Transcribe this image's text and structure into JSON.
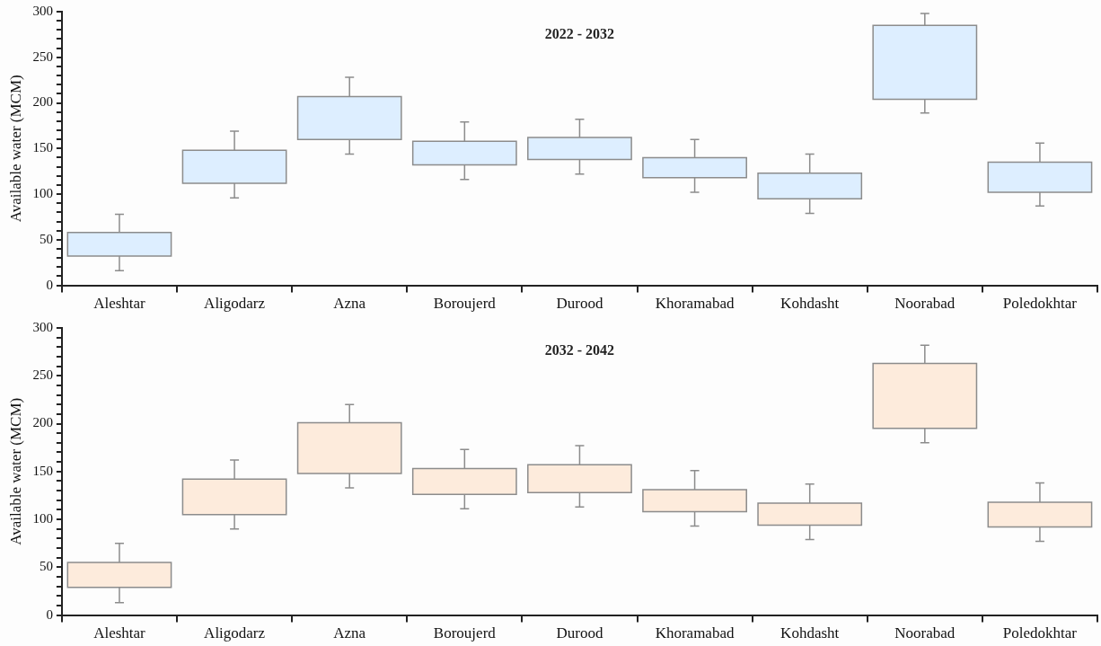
{
  "chart_data": [
    {
      "type": "box",
      "title": "2022 - 2032",
      "ylabel": "Available water (MCM)",
      "categories": [
        "Aleshtar",
        "Aligodarz",
        "Azna",
        "Boroujerd",
        "Durood",
        "Khoramabad",
        "Kohdasht",
        "Noorabad",
        "Poledokhtar"
      ],
      "series": [
        {
          "color": "#ddeeff",
          "boxes": [
            {
              "low": 16,
              "q1": 32,
              "q3": 58,
              "high": 78
            },
            {
              "low": 96,
              "q1": 112,
              "q3": 148,
              "high": 169
            },
            {
              "low": 144,
              "q1": 160,
              "q3": 207,
              "high": 228
            },
            {
              "low": 116,
              "q1": 132,
              "q3": 158,
              "high": 179
            },
            {
              "low": 122,
              "q1": 138,
              "q3": 162,
              "high": 182
            },
            {
              "low": 102,
              "q1": 118,
              "q3": 140,
              "high": 160
            },
            {
              "low": 79,
              "q1": 95,
              "q3": 123,
              "high": 144
            },
            {
              "low": 189,
              "q1": 204,
              "q3": 285,
              "high": 298
            },
            {
              "low": 87,
              "q1": 102,
              "q3": 135,
              "high": 156
            }
          ]
        }
      ],
      "ylim": [
        0,
        300
      ],
      "yticks": [
        0,
        {
          "value": 10,
          "label": null
        },
        {
          "value": 20,
          "label": null
        },
        {
          "value": 30,
          "label": null
        },
        {
          "value": 40,
          "label": null
        },
        50,
        {
          "value": 60,
          "label": null
        },
        {
          "value": 70,
          "label": null
        },
        {
          "value": 80,
          "label": null
        },
        {
          "value": 90,
          "label": null
        },
        100,
        {
          "value": 110,
          "label": null
        },
        {
          "value": 120,
          "label": null
        },
        {
          "value": 130,
          "label": null
        },
        {
          "value": 140,
          "label": null
        },
        150,
        {
          "value": 160,
          "label": null
        },
        {
          "value": 170,
          "label": null
        },
        {
          "value": 180,
          "label": null
        },
        {
          "value": 190,
          "label": null
        },
        200,
        {
          "value": 210,
          "label": null
        },
        {
          "value": 220,
          "label": null
        },
        {
          "value": 230,
          "label": null
        },
        {
          "value": 240,
          "label": null
        },
        250,
        {
          "value": 260,
          "label": null
        },
        {
          "value": 270,
          "label": null
        },
        {
          "value": 280,
          "label": null
        },
        {
          "value": 290,
          "label": null
        },
        300
      ],
      "grid": false,
      "legend": false
    },
    {
      "type": "box",
      "title": "2032 - 2042",
      "ylabel": "Available water (MCM)",
      "categories": [
        "Aleshtar",
        "Aligodarz",
        "Azna",
        "Boroujerd",
        "Durood",
        "Khoramabad",
        "Kohdasht",
        "Noorabad",
        "Poledokhtar"
      ],
      "series": [
        {
          "color": "#fdebdc",
          "boxes": [
            {
              "low": 13,
              "q1": 29,
              "q3": 55,
              "high": 75
            },
            {
              "low": 90,
              "q1": 105,
              "q3": 142,
              "high": 162
            },
            {
              "low": 133,
              "q1": 148,
              "q3": 201,
              "high": 220
            },
            {
              "low": 111,
              "q1": 126,
              "q3": 153,
              "high": 173
            },
            {
              "low": 113,
              "q1": 128,
              "q3": 157,
              "high": 177
            },
            {
              "low": 93,
              "q1": 108,
              "q3": 131,
              "high": 151
            },
            {
              "low": 79,
              "q1": 94,
              "q3": 117,
              "high": 137
            },
            {
              "low": 180,
              "q1": 195,
              "q3": 263,
              "high": 282
            },
            {
              "low": 77,
              "q1": 92,
              "q3": 118,
              "high": 138
            }
          ]
        }
      ],
      "ylim": [
        0,
        300
      ],
      "yticks": [
        0,
        {
          "value": 10,
          "label": null
        },
        {
          "value": 20,
          "label": null
        },
        {
          "value": 30,
          "label": null
        },
        {
          "value": 40,
          "label": null
        },
        50,
        {
          "value": 60,
          "label": null
        },
        {
          "value": 70,
          "label": null
        },
        {
          "value": 80,
          "label": null
        },
        {
          "value": 90,
          "label": null
        },
        100,
        {
          "value": 110,
          "label": null
        },
        {
          "value": 120,
          "label": null
        },
        {
          "value": 130,
          "label": null
        },
        {
          "value": 140,
          "label": null
        },
        150,
        {
          "value": 160,
          "label": null
        },
        {
          "value": 170,
          "label": null
        },
        {
          "value": 180,
          "label": null
        },
        {
          "value": 190,
          "label": null
        },
        200,
        {
          "value": 210,
          "label": null
        },
        {
          "value": 220,
          "label": null
        },
        {
          "value": 230,
          "label": null
        },
        {
          "value": 240,
          "label": null
        },
        250,
        {
          "value": 260,
          "label": null
        },
        {
          "value": 270,
          "label": null
        },
        {
          "value": 280,
          "label": null
        },
        {
          "value": 290,
          "label": null
        },
        300
      ],
      "grid": false,
      "legend": false
    }
  ]
}
